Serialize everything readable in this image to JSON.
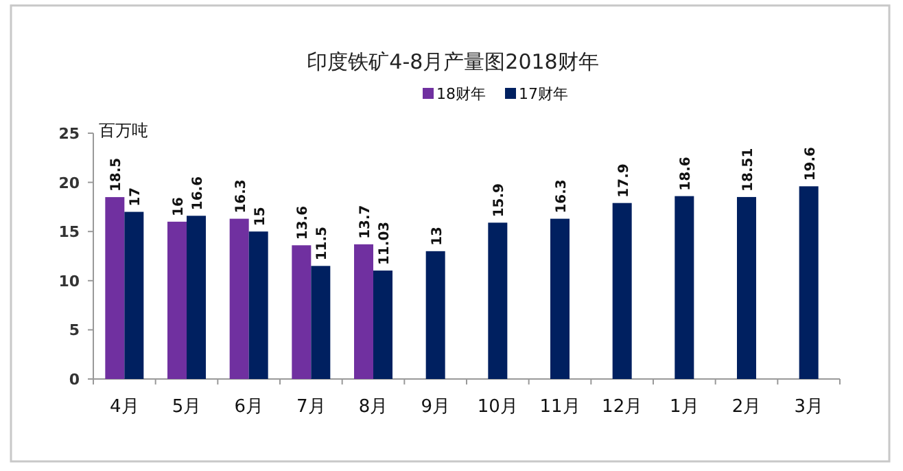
{
  "chart_data": {
    "type": "bar",
    "title": "印度铁矿4-8月产量图2018财年",
    "ylabel": "百万吨",
    "categories": [
      "4月",
      "5月",
      "6月",
      "7月",
      "8月",
      "9月",
      "10月",
      "11月",
      "12月",
      "1月",
      "2月",
      "3月"
    ],
    "series": [
      {
        "name": "18财年",
        "color": "#7030a0",
        "values": [
          18.5,
          16,
          16.3,
          13.6,
          13.7,
          null,
          null,
          null,
          null,
          null,
          null,
          null
        ]
      },
      {
        "name": "17财年",
        "color": "#002060",
        "values": [
          17,
          16.6,
          15,
          11.5,
          11.03,
          13,
          15.9,
          16.3,
          17.9,
          18.6,
          18.51,
          19.6
        ]
      }
    ],
    "ylim": [
      0,
      25
    ],
    "yticks": [
      0,
      5,
      10,
      15,
      20,
      25
    ],
    "data_labels": true,
    "legend": "top",
    "grid": false
  }
}
